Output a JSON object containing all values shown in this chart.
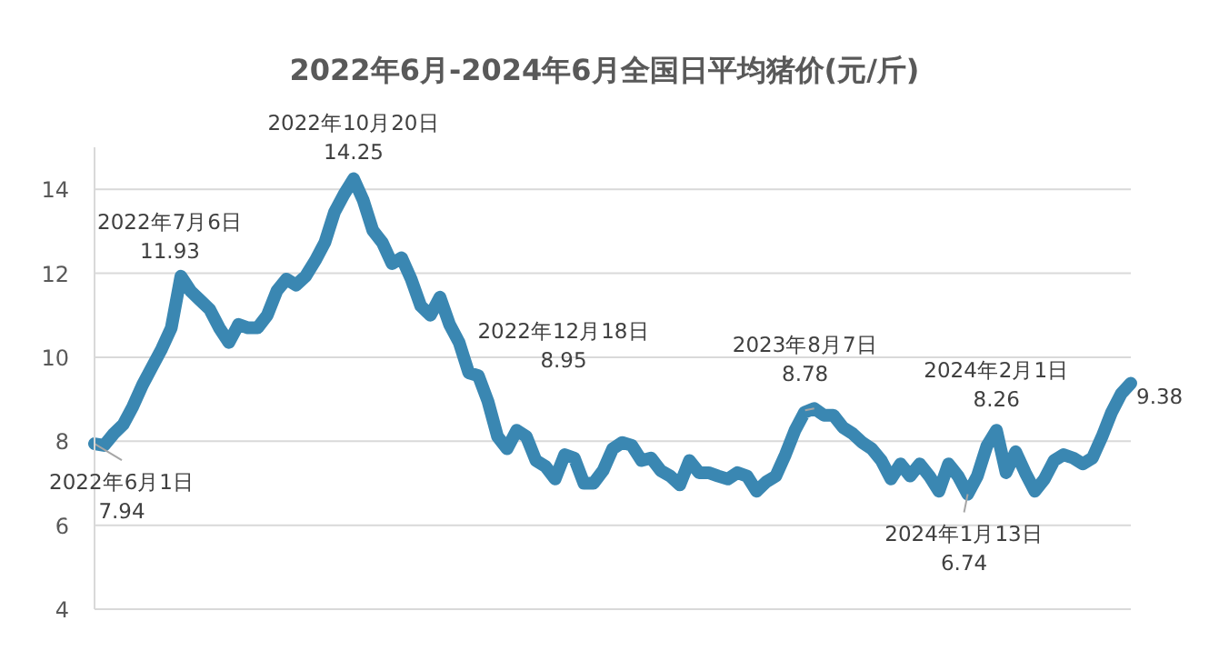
{
  "chart_data": {
    "type": "line",
    "title": "2022年6月-2024年6月全国日平均猪价(元/斤)",
    "categories": [
      null,
      null,
      null,
      null,
      null,
      null,
      null,
      null,
      null,
      null,
      null,
      null,
      null,
      null,
      null,
      null,
      null,
      null,
      null,
      null,
      null,
      null,
      null,
      null,
      null,
      null,
      null,
      null,
      null,
      null,
      null,
      null,
      null,
      null,
      null,
      null,
      null,
      null,
      null,
      null,
      null,
      null,
      null,
      null,
      null,
      null,
      null,
      null,
      null,
      null,
      null,
      null,
      null,
      null,
      null,
      null,
      null,
      null,
      null,
      null,
      null,
      null,
      null,
      null,
      null,
      null,
      null,
      null,
      null,
      null,
      null,
      null,
      null,
      null,
      null,
      null,
      null,
      null,
      null,
      null,
      null,
      null,
      null,
      null,
      null,
      null,
      null,
      null,
      null,
      null,
      null,
      null,
      null,
      null,
      null,
      null,
      null,
      null,
      null,
      null,
      null,
      null,
      null,
      null,
      null,
      null,
      null,
      null,
      null
    ],
    "values": [
      7.94,
      7.9,
      8.18,
      8.4,
      8.83,
      9.34,
      9.77,
      10.2,
      10.7,
      11.93,
      11.58,
      11.36,
      11.14,
      10.7,
      10.35,
      10.78,
      10.7,
      10.7,
      11.0,
      11.58,
      11.86,
      11.72,
      11.93,
      12.3,
      12.73,
      13.45,
      13.88,
      14.25,
      13.74,
      13.02,
      12.73,
      12.23,
      12.37,
      11.86,
      11.22,
      11.0,
      11.43,
      10.78,
      10.35,
      9.63,
      9.56,
      8.95,
      8.11,
      7.82,
      8.26,
      8.11,
      7.54,
      7.4,
      7.1,
      7.68,
      7.6,
      7.0,
      7.0,
      7.3,
      7.82,
      7.97,
      7.9,
      7.54,
      7.6,
      7.3,
      7.17,
      6.96,
      7.54,
      7.25,
      7.25,
      7.17,
      7.1,
      7.25,
      7.17,
      6.81,
      7.03,
      7.17,
      7.68,
      8.26,
      8.69,
      8.78,
      8.62,
      8.62,
      8.33,
      8.18,
      7.97,
      7.82,
      7.54,
      7.1,
      7.46,
      7.17,
      7.46,
      7.17,
      6.81,
      7.46,
      7.17,
      6.74,
      7.17,
      7.89,
      8.26,
      7.25,
      7.75,
      7.25,
      6.81,
      7.1,
      7.54,
      7.68,
      7.6,
      7.46,
      7.6,
      8.11,
      8.69,
      9.13,
      9.38
    ],
    "color": "#3a87b2",
    "grid": "y",
    "tick_labels": "y",
    "ylim": [
      4,
      15
    ],
    "yticks": [
      4,
      6,
      8,
      10,
      12,
      14
    ],
    "annotations": [
      {
        "text": "2022年6月1日\n7.94",
        "y": 7.94
      },
      {
        "text": "2022年7月6日\n11.93",
        "y": 11.93
      },
      {
        "text": "2022年10月20日\n14.25",
        "y": 14.25
      },
      "2022年12月18日\n8.95",
      {
        "text": "2023年8月7日\n8.78",
        "y": 8.78
      },
      {
        "text": "2024年1月13日\n6.74",
        "y": 6.74
      },
      {
        "text": "2024年2月1日\n8.26",
        "y": 8.26
      },
      "9.38"
    ]
  }
}
